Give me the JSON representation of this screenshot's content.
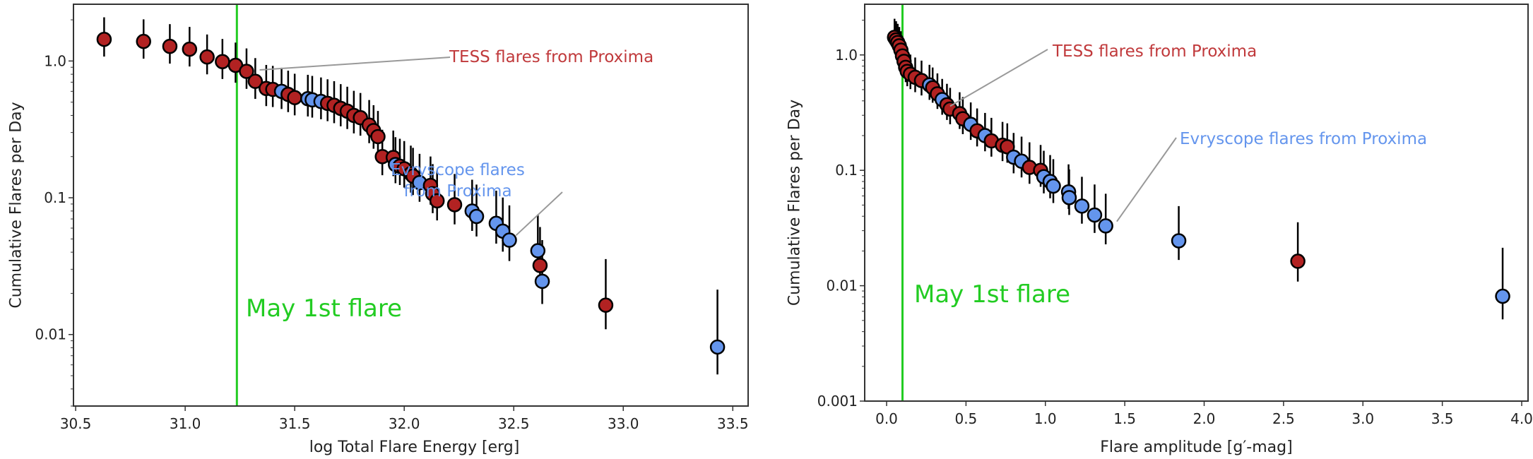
{
  "colors": {
    "tess": "#b22222",
    "evryscope": "#6495ed",
    "tess_text": "#c0393b",
    "may_line": "#22cc22"
  },
  "chart_data": [
    {
      "type": "scatter",
      "title": "",
      "xlabel": "log Total Flare Energy [erg]",
      "ylabel": "Cumulative Flares per Day",
      "xscale": "linear",
      "yscale": "log",
      "xlim": [
        30.49,
        33.57
      ],
      "ylim": [
        0.003,
        2.6
      ],
      "xticks": [
        30.5,
        31.0,
        31.5,
        32.0,
        32.5,
        33.0,
        33.5
      ],
      "xtick_labels": [
        "30.5",
        "31.0",
        "31.5",
        "32.0",
        "32.5",
        "33.0",
        "33.5"
      ],
      "yticks": [
        1.0,
        0.1,
        0.01
      ],
      "ytick_labels": [
        "1.0",
        "0.1",
        "0.01"
      ],
      "grid": false,
      "vline": {
        "x": 31.236,
        "label": "May 1st flare"
      },
      "annotations": [
        {
          "text": "TESS flares from Proxima",
          "series": "T",
          "target": [
            31.34,
            0.86
          ]
        },
        {
          "text": "Evryscope flares",
          "text2": "from Proxima",
          "series": "E",
          "target": [
            32.51,
            0.053
          ]
        }
      ],
      "yerr_model": {
        "unit_rate": 0.0081,
        "up_dex": [
          0.14,
          0.28
        ],
        "down_dex": [
          0.12,
          0.08
        ]
      },
      "series_key": {
        "T": "TESS flares from Proxima",
        "E": "Evryscope flares from Proxima"
      },
      "points": [
        [
          30.63,
          1.44,
          "T"
        ],
        [
          30.81,
          1.39,
          "T"
        ],
        [
          30.93,
          1.28,
          "T"
        ],
        [
          31.02,
          1.22,
          "T"
        ],
        [
          31.1,
          1.07,
          "T"
        ],
        [
          31.17,
          0.99,
          "T"
        ],
        [
          31.23,
          0.93,
          "T"
        ],
        [
          31.28,
          0.84,
          "T"
        ],
        [
          31.32,
          0.71,
          "T"
        ],
        [
          31.37,
          0.63,
          "T"
        ],
        [
          31.4,
          0.62,
          "T"
        ],
        [
          31.44,
          0.6,
          "E"
        ],
        [
          31.47,
          0.57,
          "T"
        ],
        [
          31.5,
          0.54,
          "T"
        ],
        [
          31.56,
          0.53,
          "E"
        ],
        [
          31.58,
          0.52,
          "E"
        ],
        [
          31.62,
          0.506,
          "E"
        ],
        [
          31.65,
          0.49,
          "T"
        ],
        [
          31.68,
          0.474,
          "T"
        ],
        [
          31.71,
          0.45,
          "T"
        ],
        [
          31.74,
          0.43,
          "T"
        ],
        [
          31.77,
          0.4,
          "T"
        ],
        [
          31.8,
          0.385,
          "T"
        ],
        [
          31.84,
          0.34,
          "T"
        ],
        [
          31.86,
          0.31,
          "T"
        ],
        [
          31.88,
          0.28,
          "T"
        ],
        [
          31.9,
          0.2,
          "T"
        ],
        [
          31.95,
          0.197,
          "T"
        ],
        [
          31.96,
          0.175,
          "E"
        ],
        [
          31.98,
          0.17,
          "T"
        ],
        [
          32.0,
          0.163,
          "T"
        ],
        [
          32.03,
          0.15,
          "T"
        ],
        [
          32.04,
          0.144,
          "T"
        ],
        [
          32.07,
          0.129,
          "E"
        ],
        [
          32.12,
          0.123,
          "T"
        ],
        [
          32.13,
          0.107,
          "T"
        ],
        [
          32.15,
          0.095,
          "T"
        ],
        [
          32.23,
          0.089,
          "T"
        ],
        [
          32.31,
          0.08,
          "E"
        ],
        [
          32.33,
          0.073,
          "E"
        ],
        [
          32.42,
          0.065,
          "E"
        ],
        [
          32.45,
          0.057,
          "E"
        ],
        [
          32.48,
          0.049,
          "E"
        ],
        [
          32.61,
          0.041,
          "E"
        ],
        [
          32.62,
          0.032,
          "T"
        ],
        [
          32.63,
          0.0245,
          "E"
        ],
        [
          32.92,
          0.0164,
          "T"
        ],
        [
          33.43,
          0.0081,
          "E"
        ]
      ]
    },
    {
      "type": "scatter",
      "title": "",
      "xlabel": "Flare amplitude [g′-mag]",
      "ylabel": "Cumulative Flares per Day",
      "xscale": "linear",
      "yscale": "log",
      "xlim": [
        -0.138,
        4.04
      ],
      "ylim": [
        0.001,
        2.75
      ],
      "xticks": [
        0.0,
        0.5,
        1.0,
        1.5,
        2.0,
        2.5,
        3.0,
        3.5,
        4.0
      ],
      "xtick_labels": [
        "0.0",
        "0.5",
        "1.0",
        "1.5",
        "2.0",
        "2.5",
        "3.0",
        "3.5",
        "4.0"
      ],
      "yticks": [
        1.0,
        0.1,
        0.01,
        0.001
      ],
      "ytick_labels": [
        "1.0",
        "0.1",
        "0.01",
        "0.001"
      ],
      "grid": false,
      "vline": {
        "x": 0.1,
        "label": "May 1st flare"
      },
      "annotations": [
        {
          "text": "TESS flares from Proxima",
          "series": "T",
          "target": [
            0.4,
            0.36
          ]
        },
        {
          "text": "Evryscope flares from Proxima",
          "series": "E",
          "target": [
            1.45,
            0.036
          ]
        }
      ],
      "yerr_model": {
        "unit_rate": 0.0081,
        "up_dex": [
          0.14,
          0.28
        ],
        "down_dex": [
          0.12,
          0.08
        ]
      },
      "series_key": {
        "T": "TESS flares from Proxima",
        "E": "Evryscope flares from Proxima"
      },
      "points": [
        [
          0.05,
          1.42,
          "T"
        ],
        [
          0.06,
          1.35,
          "T"
        ],
        [
          0.07,
          1.28,
          "T"
        ],
        [
          0.08,
          1.2,
          "T"
        ],
        [
          0.09,
          1.1,
          "T"
        ],
        [
          0.1,
          0.98,
          "T"
        ],
        [
          0.11,
          0.88,
          "T"
        ],
        [
          0.12,
          0.78,
          "T"
        ],
        [
          0.13,
          0.72,
          "T"
        ],
        [
          0.15,
          0.68,
          "T"
        ],
        [
          0.18,
          0.64,
          "T"
        ],
        [
          0.22,
          0.6,
          "T"
        ],
        [
          0.27,
          0.55,
          "E"
        ],
        [
          0.29,
          0.52,
          "T"
        ],
        [
          0.32,
          0.46,
          "T"
        ],
        [
          0.35,
          0.41,
          "E"
        ],
        [
          0.38,
          0.37,
          "T"
        ],
        [
          0.4,
          0.34,
          "T"
        ],
        [
          0.46,
          0.31,
          "T"
        ],
        [
          0.48,
          0.28,
          "T"
        ],
        [
          0.53,
          0.25,
          "E"
        ],
        [
          0.57,
          0.22,
          "T"
        ],
        [
          0.62,
          0.2,
          "E"
        ],
        [
          0.66,
          0.18,
          "T"
        ],
        [
          0.73,
          0.165,
          "T"
        ],
        [
          0.76,
          0.16,
          "T"
        ],
        [
          0.8,
          0.13,
          "E"
        ],
        [
          0.85,
          0.12,
          "E"
        ],
        [
          0.9,
          0.106,
          "T"
        ],
        [
          0.97,
          0.1,
          "T"
        ],
        [
          0.99,
          0.088,
          "E"
        ],
        [
          1.03,
          0.08,
          "E"
        ],
        [
          1.05,
          0.073,
          "E"
        ],
        [
          1.146,
          0.065,
          "E"
        ],
        [
          1.15,
          0.058,
          "E"
        ],
        [
          1.23,
          0.049,
          "E"
        ],
        [
          1.31,
          0.041,
          "E"
        ],
        [
          1.38,
          0.033,
          "E"
        ],
        [
          1.84,
          0.0245,
          "E"
        ],
        [
          2.59,
          0.0163,
          "T"
        ],
        [
          3.88,
          0.0081,
          "E"
        ]
      ]
    }
  ]
}
